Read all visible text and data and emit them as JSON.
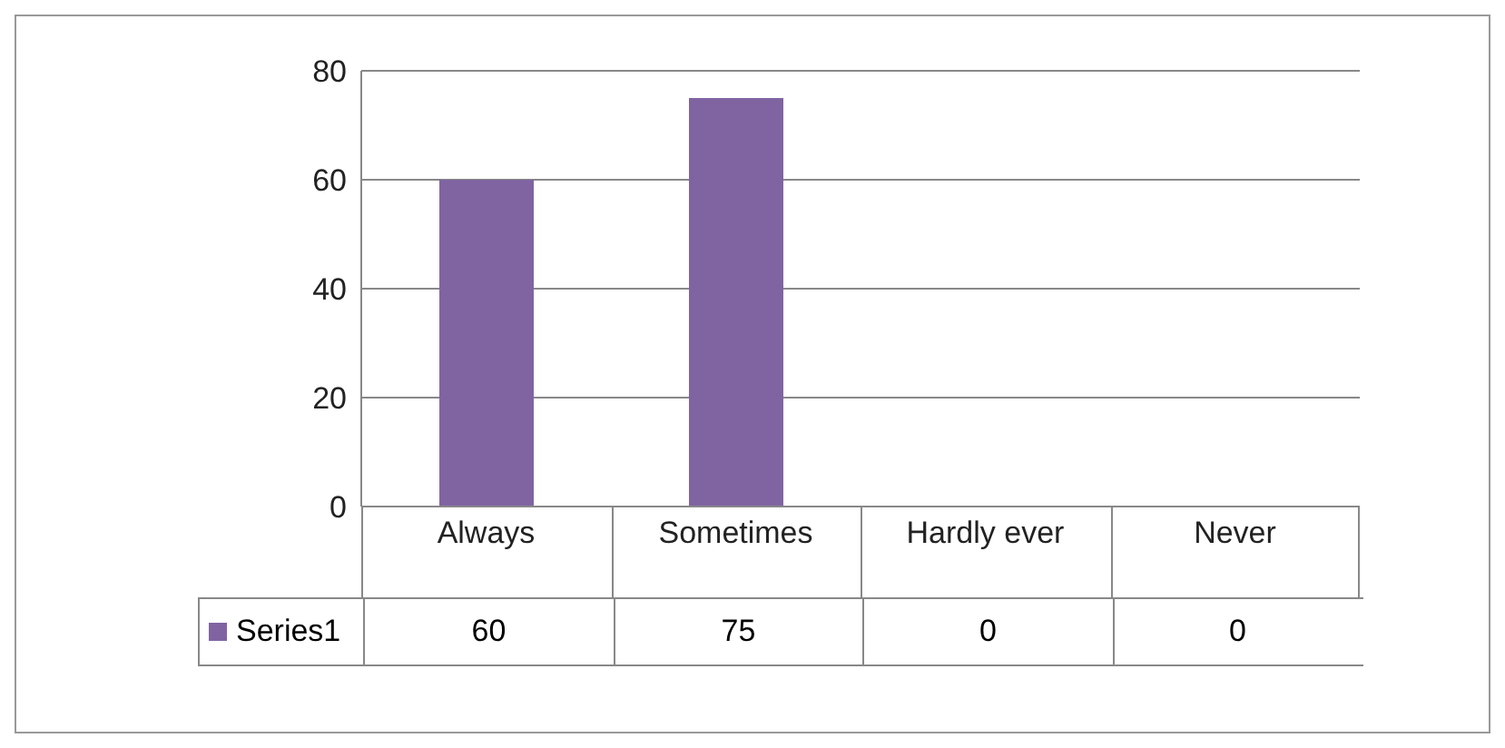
{
  "chart_data": {
    "type": "bar",
    "categories": [
      "Always",
      "Sometimes",
      "Hardly ever",
      "Never"
    ],
    "series": [
      {
        "name": "Series1",
        "color": "#8064a2",
        "values": [
          60,
          75,
          0,
          0
        ]
      }
    ],
    "ylim": [
      0,
      80
    ],
    "yticks": [
      0,
      20,
      40,
      60,
      80
    ],
    "grid": "y",
    "data_labels": true
  }
}
